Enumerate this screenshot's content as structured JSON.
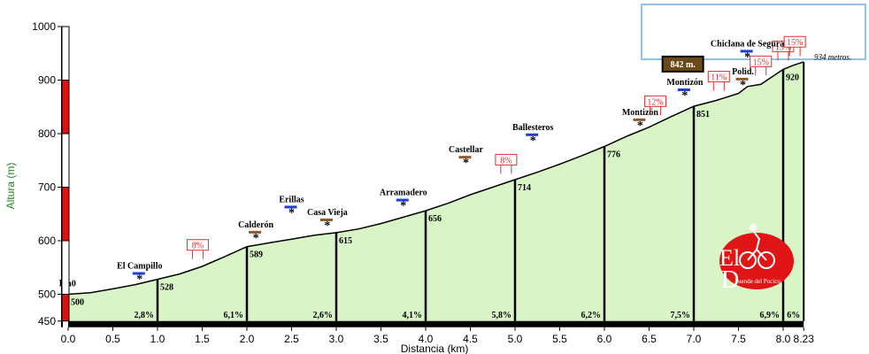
{
  "chart_data": {
    "type": "area",
    "xlabel": "Distancia (km)",
    "ylabel": "Altura (m)",
    "xlim": [
      0,
      8.23
    ],
    "ylim": [
      450,
      1000
    ],
    "x_ticks": [
      0.0,
      0.5,
      1.0,
      1.5,
      2.0,
      2.5,
      3.0,
      3.5,
      4.0,
      4.5,
      5.0,
      5.5,
      6.0,
      6.5,
      7.0,
      7.5,
      8.0,
      8.23
    ],
    "x_tick_labels": [
      "0.0",
      "0.5",
      "1.0",
      "1.5",
      "2.0",
      "2.5",
      "3.0",
      "3.5",
      "4.0",
      "4.5",
      "5.0",
      "5.5",
      "6.0",
      "6.5",
      "7.0",
      "7.5",
      "8.0",
      "8.23"
    ],
    "y_ticks": [
      450,
      500,
      600,
      700,
      800,
      900,
      1000
    ],
    "grid": false,
    "colors": {
      "fill": "#d9f5c8",
      "profile_line": "#000000",
      "axis_text": "#1a8a1a",
      "bar_red": "#e01010",
      "gradient_box": "#e03030",
      "arrow_blue": "#1f3fd0",
      "arrow_brown": "#8a5a2a"
    },
    "profile": {
      "x": [
        0.0,
        0.25,
        0.5,
        0.75,
        1.0,
        1.25,
        1.5,
        1.75,
        2.0,
        2.25,
        2.5,
        2.75,
        3.0,
        3.25,
        3.5,
        3.75,
        4.0,
        4.25,
        4.5,
        4.75,
        5.0,
        5.25,
        5.5,
        5.75,
        6.0,
        6.25,
        6.5,
        6.75,
        7.0,
        7.25,
        7.5,
        7.6,
        7.75,
        8.0,
        8.12,
        8.23
      ],
      "y": [
        500,
        503,
        510,
        518,
        528,
        538,
        552,
        570,
        589,
        596,
        603,
        610,
        615,
        622,
        632,
        644,
        656,
        670,
        686,
        700,
        714,
        728,
        743,
        759,
        776,
        795,
        812,
        832,
        851,
        862,
        875,
        888,
        892,
        920,
        928,
        934
      ]
    },
    "segment_points": [
      {
        "x": 0.0,
        "elevation_label": "500"
      },
      {
        "x": 1.0,
        "elevation_label": "528"
      },
      {
        "x": 2.0,
        "elevation_label": "589"
      },
      {
        "x": 3.0,
        "elevation_label": "615"
      },
      {
        "x": 4.0,
        "elevation_label": "656"
      },
      {
        "x": 5.0,
        "elevation_label": "714"
      },
      {
        "x": 6.0,
        "elevation_label": "776"
      },
      {
        "x": 7.0,
        "elevation_label": "851"
      },
      {
        "x": 8.0,
        "elevation_label": "920"
      }
    ],
    "segment_gradients": [
      {
        "x": 1.0,
        "label": "2,8%"
      },
      {
        "x": 2.0,
        "label": "6,1%"
      },
      {
        "x": 3.0,
        "label": "2,6%"
      },
      {
        "x": 4.0,
        "label": "4,1%"
      },
      {
        "x": 5.0,
        "label": "5,8%"
      },
      {
        "x": 6.0,
        "label": "6,2%"
      },
      {
        "x": 7.0,
        "label": "7,5%"
      },
      {
        "x": 8.0,
        "label": "6,9%"
      },
      {
        "x": 8.23,
        "label": "6%"
      }
    ],
    "max_gradients": [
      {
        "x": 1.45,
        "label": "8%"
      },
      {
        "x": 4.9,
        "label": "8%"
      },
      {
        "x": 6.57,
        "label": "12%"
      },
      {
        "x": 7.28,
        "label": "11%"
      },
      {
        "x": 7.75,
        "label": "15%"
      },
      {
        "x": 8.0,
        "label": "13%"
      },
      {
        "x": 8.13,
        "label": "15%"
      }
    ],
    "places": [
      {
        "x": 0.8,
        "y": 548,
        "name": "El Campillo"
      },
      {
        "x": 2.1,
        "y": 625,
        "name": "Calderón"
      },
      {
        "x": 2.5,
        "y": 672,
        "name": "Erillas"
      },
      {
        "x": 2.9,
        "y": 648,
        "name": "Casa Vieja"
      },
      {
        "x": 3.75,
        "y": 685,
        "name": "Arramadero"
      },
      {
        "x": 4.45,
        "y": 765,
        "name": "Castellar"
      },
      {
        "x": 5.2,
        "y": 807,
        "name": "Ballesteros"
      },
      {
        "x": 6.4,
        "y": 835,
        "name": "Montizón"
      },
      {
        "x": 6.9,
        "y": 891,
        "name": "Montizón"
      },
      {
        "x": 7.55,
        "y": 911,
        "name": "Polid."
      },
      {
        "x": 7.6,
        "y": 963,
        "name": "Chiclana de Segura"
      }
    ],
    "start_label": "km0",
    "summit_label": "934 metros.",
    "summit_elevation_box": "842 m."
  }
}
